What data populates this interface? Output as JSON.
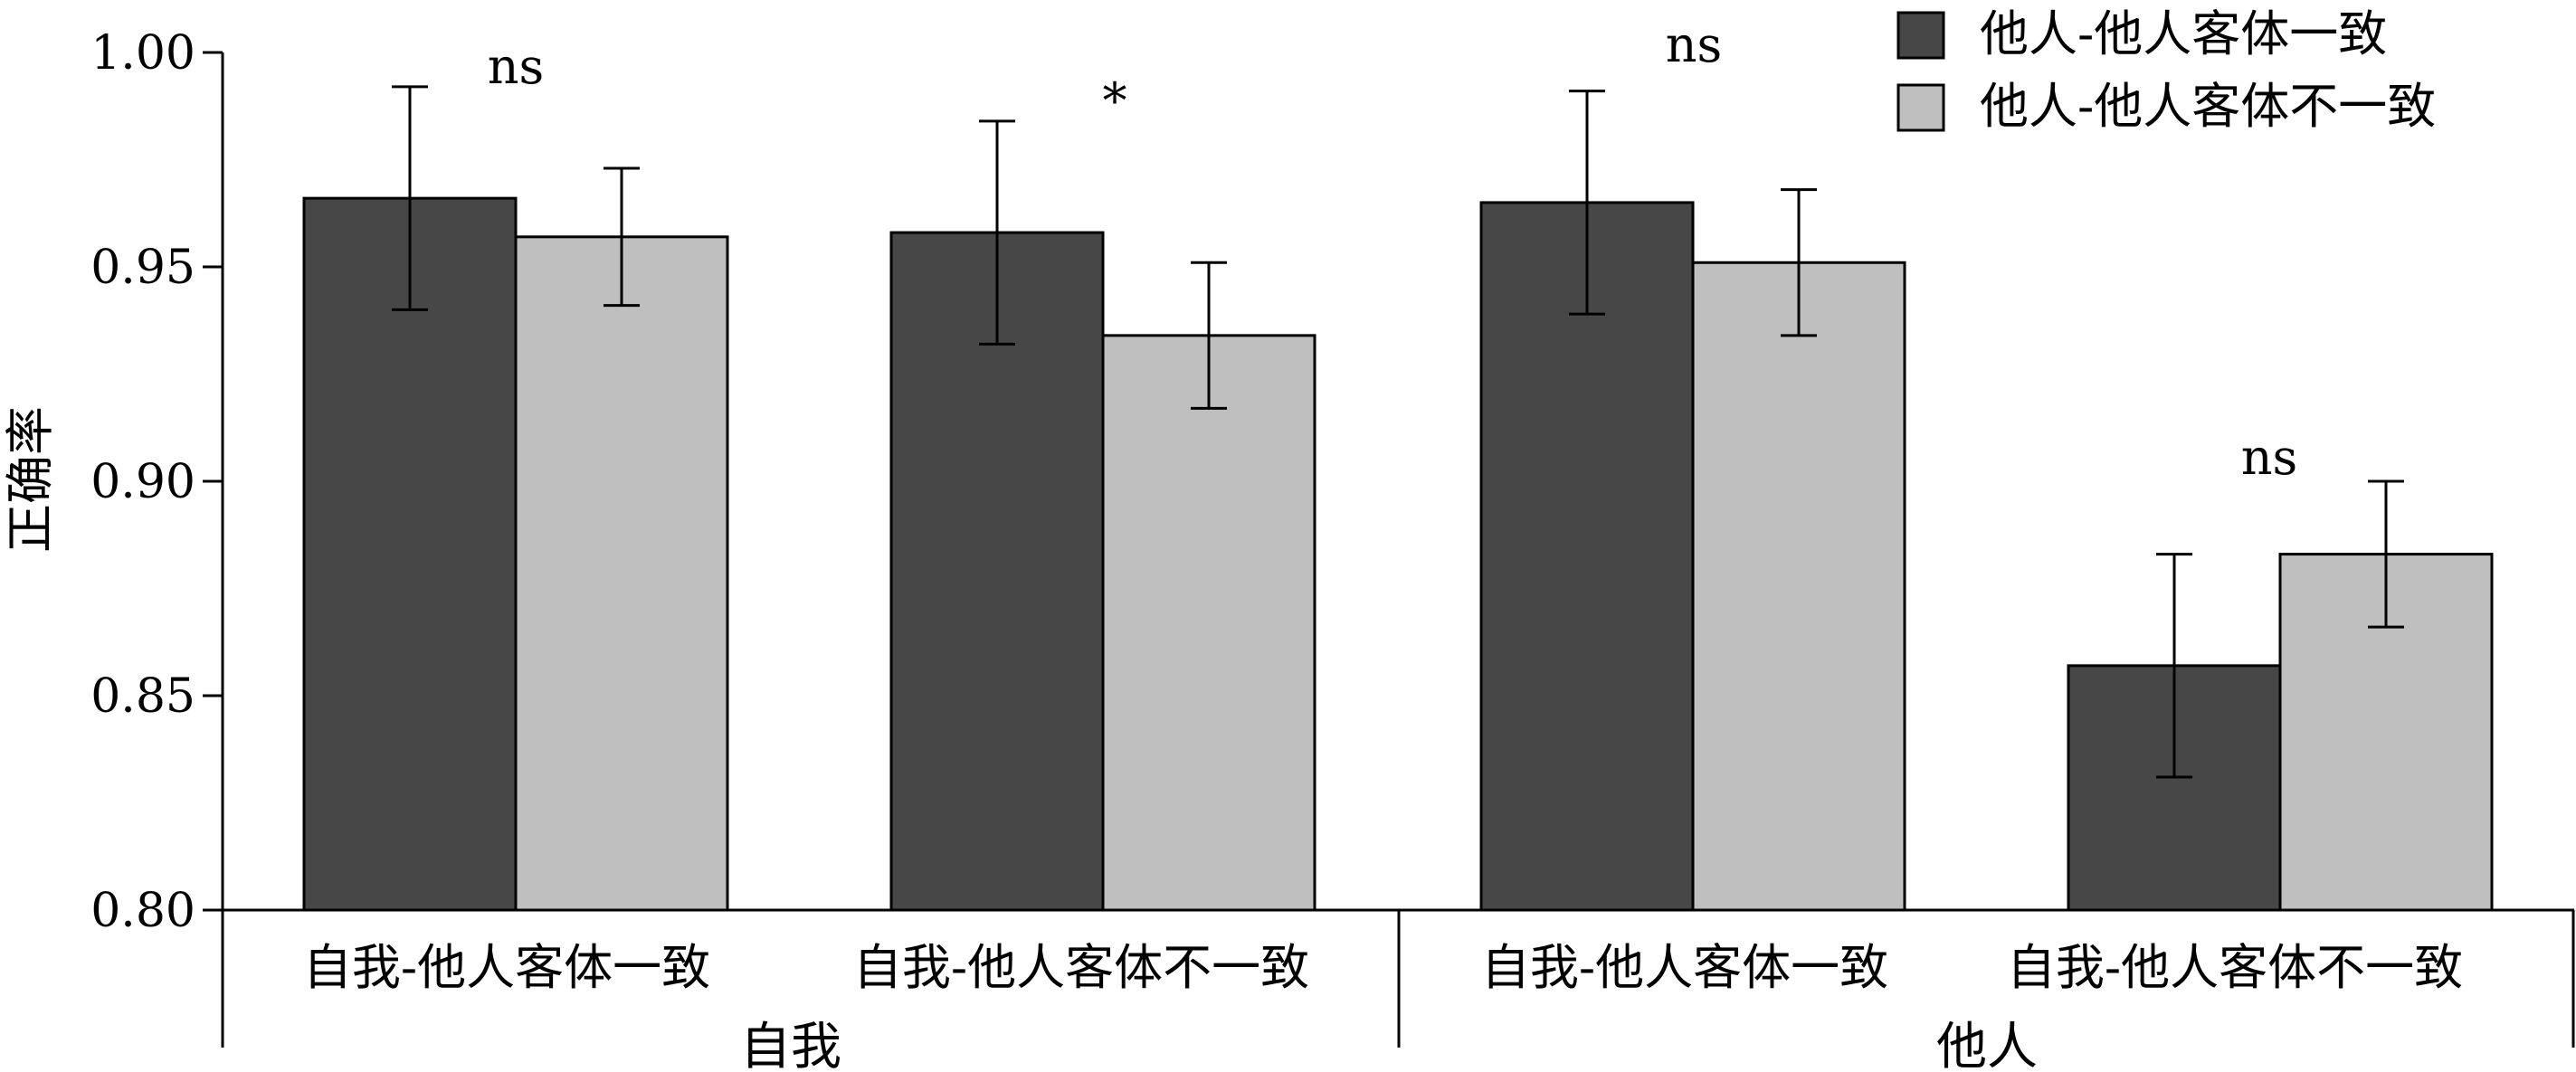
{
  "chart_data": {
    "type": "bar",
    "ylabel": "正确率",
    "ylim": [
      0.8,
      1.0
    ],
    "yticks": [
      "0.80",
      "0.85",
      "0.90",
      "0.95",
      "1.00"
    ],
    "groups": [
      {
        "label": "自我",
        "categories": [
          "自我-他人客体一致",
          "自我-他人客体不一致"
        ]
      },
      {
        "label": "他人",
        "categories": [
          "自我-他人客体一致",
          "自我-他人客体不一致"
        ]
      }
    ],
    "categories": [
      "自我-他人客体一致",
      "自我-他人客体不一致",
      "自我-他人客体一致",
      "自我-他人客体不一致"
    ],
    "series": [
      {
        "name": "他人-他人客体一致",
        "color": "#474747",
        "values": [
          0.966,
          0.958,
          0.965,
          0.857
        ],
        "error": [
          0.026,
          0.026,
          0.026,
          0.026
        ]
      },
      {
        "name": "他人-他人客体不一致",
        "color": "#bfbfbf",
        "values": [
          0.957,
          0.934,
          0.951,
          0.883
        ],
        "error": [
          0.016,
          0.017,
          0.017,
          0.017
        ]
      }
    ],
    "significance": [
      "ns",
      "*",
      "ns",
      "ns"
    ],
    "legend": "top-right",
    "grid": false
  }
}
